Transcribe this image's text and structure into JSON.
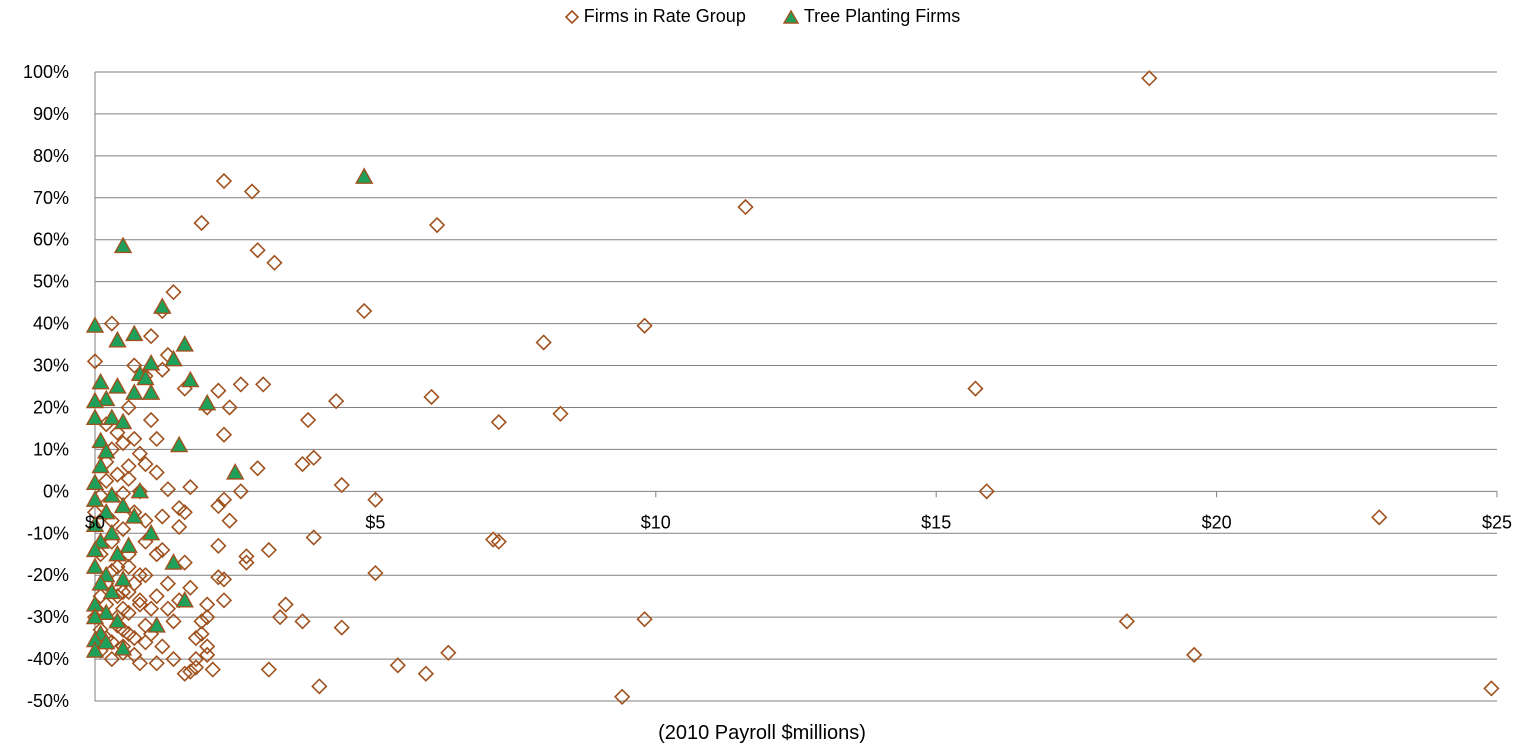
{
  "chart_data": {
    "type": "scatter",
    "title": "",
    "xlabel": "(2010 Payroll $millions)",
    "ylabel": "",
    "xlim": [
      0,
      25
    ],
    "ylim": [
      -0.5,
      1.0
    ],
    "x_ticks": [
      0,
      5,
      10,
      15,
      20,
      25
    ],
    "x_tick_labels": [
      "$0",
      "$5",
      "$10",
      "$15",
      "$20",
      "$25"
    ],
    "y_ticks": [
      1.0,
      0.9,
      0.8,
      0.7,
      0.6,
      0.5,
      0.4,
      0.3,
      0.2,
      0.1,
      0.0,
      -0.1,
      -0.2,
      -0.3,
      -0.4,
      -0.5
    ],
    "y_tick_labels": [
      "100%",
      "90%",
      "80%",
      "70%",
      "60%",
      "50%",
      "40%",
      "30%",
      "20%",
      "10%",
      "0%",
      "-10%",
      "-20%",
      "-30%",
      "-40%",
      "-50%"
    ],
    "grid": "horizontal",
    "legend_position": "top",
    "colors": {
      "rate_group": "#A0521E",
      "tree_fill": "#1FA05A",
      "tree_edge": "#A0521E",
      "grid": "#808080",
      "axis": "#808080"
    },
    "series": [
      {
        "name": "Firms in Rate Group",
        "marker": "diamond",
        "points": [
          [
            18.8,
            0.985
          ],
          [
            2.3,
            0.74
          ],
          [
            2.8,
            0.715
          ],
          [
            11.6,
            0.678
          ],
          [
            1.9,
            0.64
          ],
          [
            6.1,
            0.635
          ],
          [
            2.9,
            0.575
          ],
          [
            3.2,
            0.545
          ],
          [
            1.4,
            0.475
          ],
          [
            4.8,
            0.43
          ],
          [
            1.2,
            0.43
          ],
          [
            9.8,
            0.395
          ],
          [
            0.3,
            0.4
          ],
          [
            1.0,
            0.37
          ],
          [
            8.0,
            0.355
          ],
          [
            1.3,
            0.325
          ],
          [
            0.0,
            0.31
          ],
          [
            0.7,
            0.3
          ],
          [
            1.2,
            0.29
          ],
          [
            0.9,
            0.275
          ],
          [
            2.6,
            0.255
          ],
          [
            3.0,
            0.255
          ],
          [
            15.7,
            0.245
          ],
          [
            1.6,
            0.245
          ],
          [
            2.2,
            0.24
          ],
          [
            6.0,
            0.225
          ],
          [
            4.3,
            0.215
          ],
          [
            2.0,
            0.2
          ],
          [
            2.4,
            0.2
          ],
          [
            0.6,
            0.2
          ],
          [
            8.3,
            0.185
          ],
          [
            3.8,
            0.17
          ],
          [
            1.0,
            0.17
          ],
          [
            7.2,
            0.165
          ],
          [
            0.2,
            0.16
          ],
          [
            0.4,
            0.14
          ],
          [
            2.3,
            0.135
          ],
          [
            1.1,
            0.125
          ],
          [
            0.7,
            0.125
          ],
          [
            0.5,
            0.115
          ],
          [
            0.3,
            0.1
          ],
          [
            0.8,
            0.09
          ],
          [
            3.7,
            0.065
          ],
          [
            3.9,
            0.08
          ],
          [
            0.9,
            0.065
          ],
          [
            2.9,
            0.055
          ],
          [
            0.6,
            0.06
          ],
          [
            1.1,
            0.045
          ],
          [
            0.4,
            0.04
          ],
          [
            0.2,
            0.025
          ],
          [
            4.4,
            0.015
          ],
          [
            1.7,
            0.01
          ],
          [
            1.3,
            0.005
          ],
          [
            15.9,
            0.0
          ],
          [
            2.6,
            0.0
          ],
          [
            0.8,
            0.0
          ],
          [
            0.5,
            -0.005
          ],
          [
            0.1,
            -0.01
          ],
          [
            5.0,
            -0.02
          ],
          [
            2.3,
            -0.02
          ],
          [
            2.2,
            -0.035
          ],
          [
            1.5,
            -0.04
          ],
          [
            1.6,
            -0.05
          ],
          [
            0.7,
            -0.05
          ],
          [
            22.9,
            -0.062
          ],
          [
            2.4,
            -0.07
          ],
          [
            1.2,
            -0.06
          ],
          [
            0.9,
            -0.07
          ],
          [
            1.5,
            -0.085
          ],
          [
            0.5,
            -0.09
          ],
          [
            3.9,
            -0.11
          ],
          [
            7.1,
            -0.115
          ],
          [
            7.2,
            -0.12
          ],
          [
            0.3,
            -0.12
          ],
          [
            2.2,
            -0.13
          ],
          [
            3.1,
            -0.14
          ],
          [
            1.1,
            -0.15
          ],
          [
            2.7,
            -0.155
          ],
          [
            0.6,
            -0.15
          ],
          [
            2.7,
            -0.17
          ],
          [
            1.6,
            -0.17
          ],
          [
            0.4,
            -0.18
          ],
          [
            5.0,
            -0.195
          ],
          [
            0.9,
            -0.2
          ],
          [
            2.2,
            -0.205
          ],
          [
            2.3,
            -0.21
          ],
          [
            1.3,
            -0.22
          ],
          [
            0.7,
            -0.22
          ],
          [
            1.7,
            -0.23
          ],
          [
            0.5,
            -0.24
          ],
          [
            1.1,
            -0.25
          ],
          [
            2.3,
            -0.26
          ],
          [
            1.5,
            -0.26
          ],
          [
            0.8,
            -0.26
          ],
          [
            3.4,
            -0.27
          ],
          [
            2.0,
            -0.27
          ],
          [
            1.3,
            -0.28
          ],
          [
            3.3,
            -0.3
          ],
          [
            2.0,
            -0.3
          ],
          [
            0.6,
            -0.29
          ],
          [
            9.8,
            -0.305
          ],
          [
            18.4,
            -0.31
          ],
          [
            3.7,
            -0.31
          ],
          [
            1.9,
            -0.31
          ],
          [
            1.4,
            -0.31
          ],
          [
            0.9,
            -0.32
          ],
          [
            4.4,
            -0.325
          ],
          [
            1.9,
            -0.34
          ],
          [
            1.8,
            -0.35
          ],
          [
            0.7,
            -0.35
          ],
          [
            2.0,
            -0.37
          ],
          [
            1.2,
            -0.37
          ],
          [
            0.5,
            -0.37
          ],
          [
            6.3,
            -0.385
          ],
          [
            19.6,
            -0.39
          ],
          [
            2.0,
            -0.39
          ],
          [
            1.4,
            -0.4
          ],
          [
            0.5,
            -0.385
          ],
          [
            1.8,
            -0.4
          ],
          [
            1.1,
            -0.41
          ],
          [
            0.8,
            -0.41
          ],
          [
            5.4,
            -0.415
          ],
          [
            1.8,
            -0.42
          ],
          [
            3.1,
            -0.425
          ],
          [
            2.1,
            -0.425
          ],
          [
            1.7,
            -0.43
          ],
          [
            1.6,
            -0.435
          ],
          [
            5.9,
            -0.435
          ],
          [
            4.0,
            -0.465
          ],
          [
            24.9,
            -0.47
          ],
          [
            9.4,
            -0.49
          ],
          [
            0.1,
            -0.33
          ],
          [
            0.0,
            -0.3
          ],
          [
            0.2,
            -0.27
          ],
          [
            0.4,
            -0.32
          ],
          [
            0.6,
            -0.34
          ],
          [
            1.0,
            -0.34
          ],
          [
            0.3,
            -0.36
          ],
          [
            0.2,
            -0.22
          ],
          [
            0.1,
            -0.15
          ],
          [
            0.0,
            -0.05
          ],
          [
            0.5,
            -0.28
          ],
          [
            0.8,
            -0.2
          ],
          [
            1.0,
            -0.28
          ],
          [
            0.4,
            -0.25
          ],
          [
            0.6,
            -0.18
          ],
          [
            0.3,
            -0.07
          ],
          [
            0.2,
            0.07
          ],
          [
            0.6,
            0.03
          ],
          [
            0.9,
            -0.12
          ],
          [
            1.2,
            -0.14
          ],
          [
            0.1,
            -0.38
          ],
          [
            0.3,
            -0.4
          ],
          [
            0.7,
            -0.39
          ],
          [
            0.9,
            -0.36
          ],
          [
            0.5,
            -0.33
          ],
          [
            0.2,
            -0.35
          ],
          [
            0.4,
            -0.3
          ],
          [
            0.6,
            -0.24
          ],
          [
            0.8,
            -0.27
          ],
          [
            0.3,
            -0.19
          ],
          [
            0.1,
            -0.25
          ]
        ]
      },
      {
        "name": "Tree Planting Firms",
        "marker": "triangle",
        "points": [
          [
            4.8,
            0.75
          ],
          [
            0.5,
            0.585
          ],
          [
            1.2,
            0.44
          ],
          [
            0.0,
            0.395
          ],
          [
            0.7,
            0.375
          ],
          [
            0.4,
            0.36
          ],
          [
            1.6,
            0.35
          ],
          [
            1.4,
            0.315
          ],
          [
            1.0,
            0.305
          ],
          [
            0.8,
            0.28
          ],
          [
            0.9,
            0.27
          ],
          [
            1.7,
            0.265
          ],
          [
            0.1,
            0.26
          ],
          [
            0.4,
            0.25
          ],
          [
            0.7,
            0.235
          ],
          [
            1.0,
            0.235
          ],
          [
            0.2,
            0.22
          ],
          [
            0.0,
            0.215
          ],
          [
            2.0,
            0.21
          ],
          [
            0.3,
            0.175
          ],
          [
            0.0,
            0.175
          ],
          [
            0.5,
            0.165
          ],
          [
            0.1,
            0.12
          ],
          [
            1.5,
            0.11
          ],
          [
            0.2,
            0.095
          ],
          [
            2.5,
            0.045
          ],
          [
            0.1,
            0.06
          ],
          [
            0.0,
            0.02
          ],
          [
            0.8,
            0.0
          ],
          [
            0.3,
            -0.01
          ],
          [
            0.0,
            -0.02
          ],
          [
            0.5,
            -0.035
          ],
          [
            0.2,
            -0.05
          ],
          [
            0.7,
            -0.06
          ],
          [
            0.0,
            -0.08
          ],
          [
            1.0,
            -0.1
          ],
          [
            0.3,
            -0.1
          ],
          [
            0.1,
            -0.12
          ],
          [
            0.6,
            -0.13
          ],
          [
            0.0,
            -0.14
          ],
          [
            0.4,
            -0.15
          ],
          [
            1.4,
            -0.17
          ],
          [
            0.0,
            -0.18
          ],
          [
            0.2,
            -0.2
          ],
          [
            0.5,
            -0.21
          ],
          [
            0.1,
            -0.22
          ],
          [
            0.3,
            -0.24
          ],
          [
            1.6,
            -0.26
          ],
          [
            0.0,
            -0.27
          ],
          [
            0.2,
            -0.29
          ],
          [
            0.0,
            -0.3
          ],
          [
            0.4,
            -0.31
          ],
          [
            1.1,
            -0.32
          ],
          [
            0.1,
            -0.34
          ],
          [
            0.0,
            -0.355
          ],
          [
            0.2,
            -0.36
          ],
          [
            0.5,
            -0.375
          ],
          [
            0.0,
            -0.38
          ]
        ]
      }
    ]
  }
}
